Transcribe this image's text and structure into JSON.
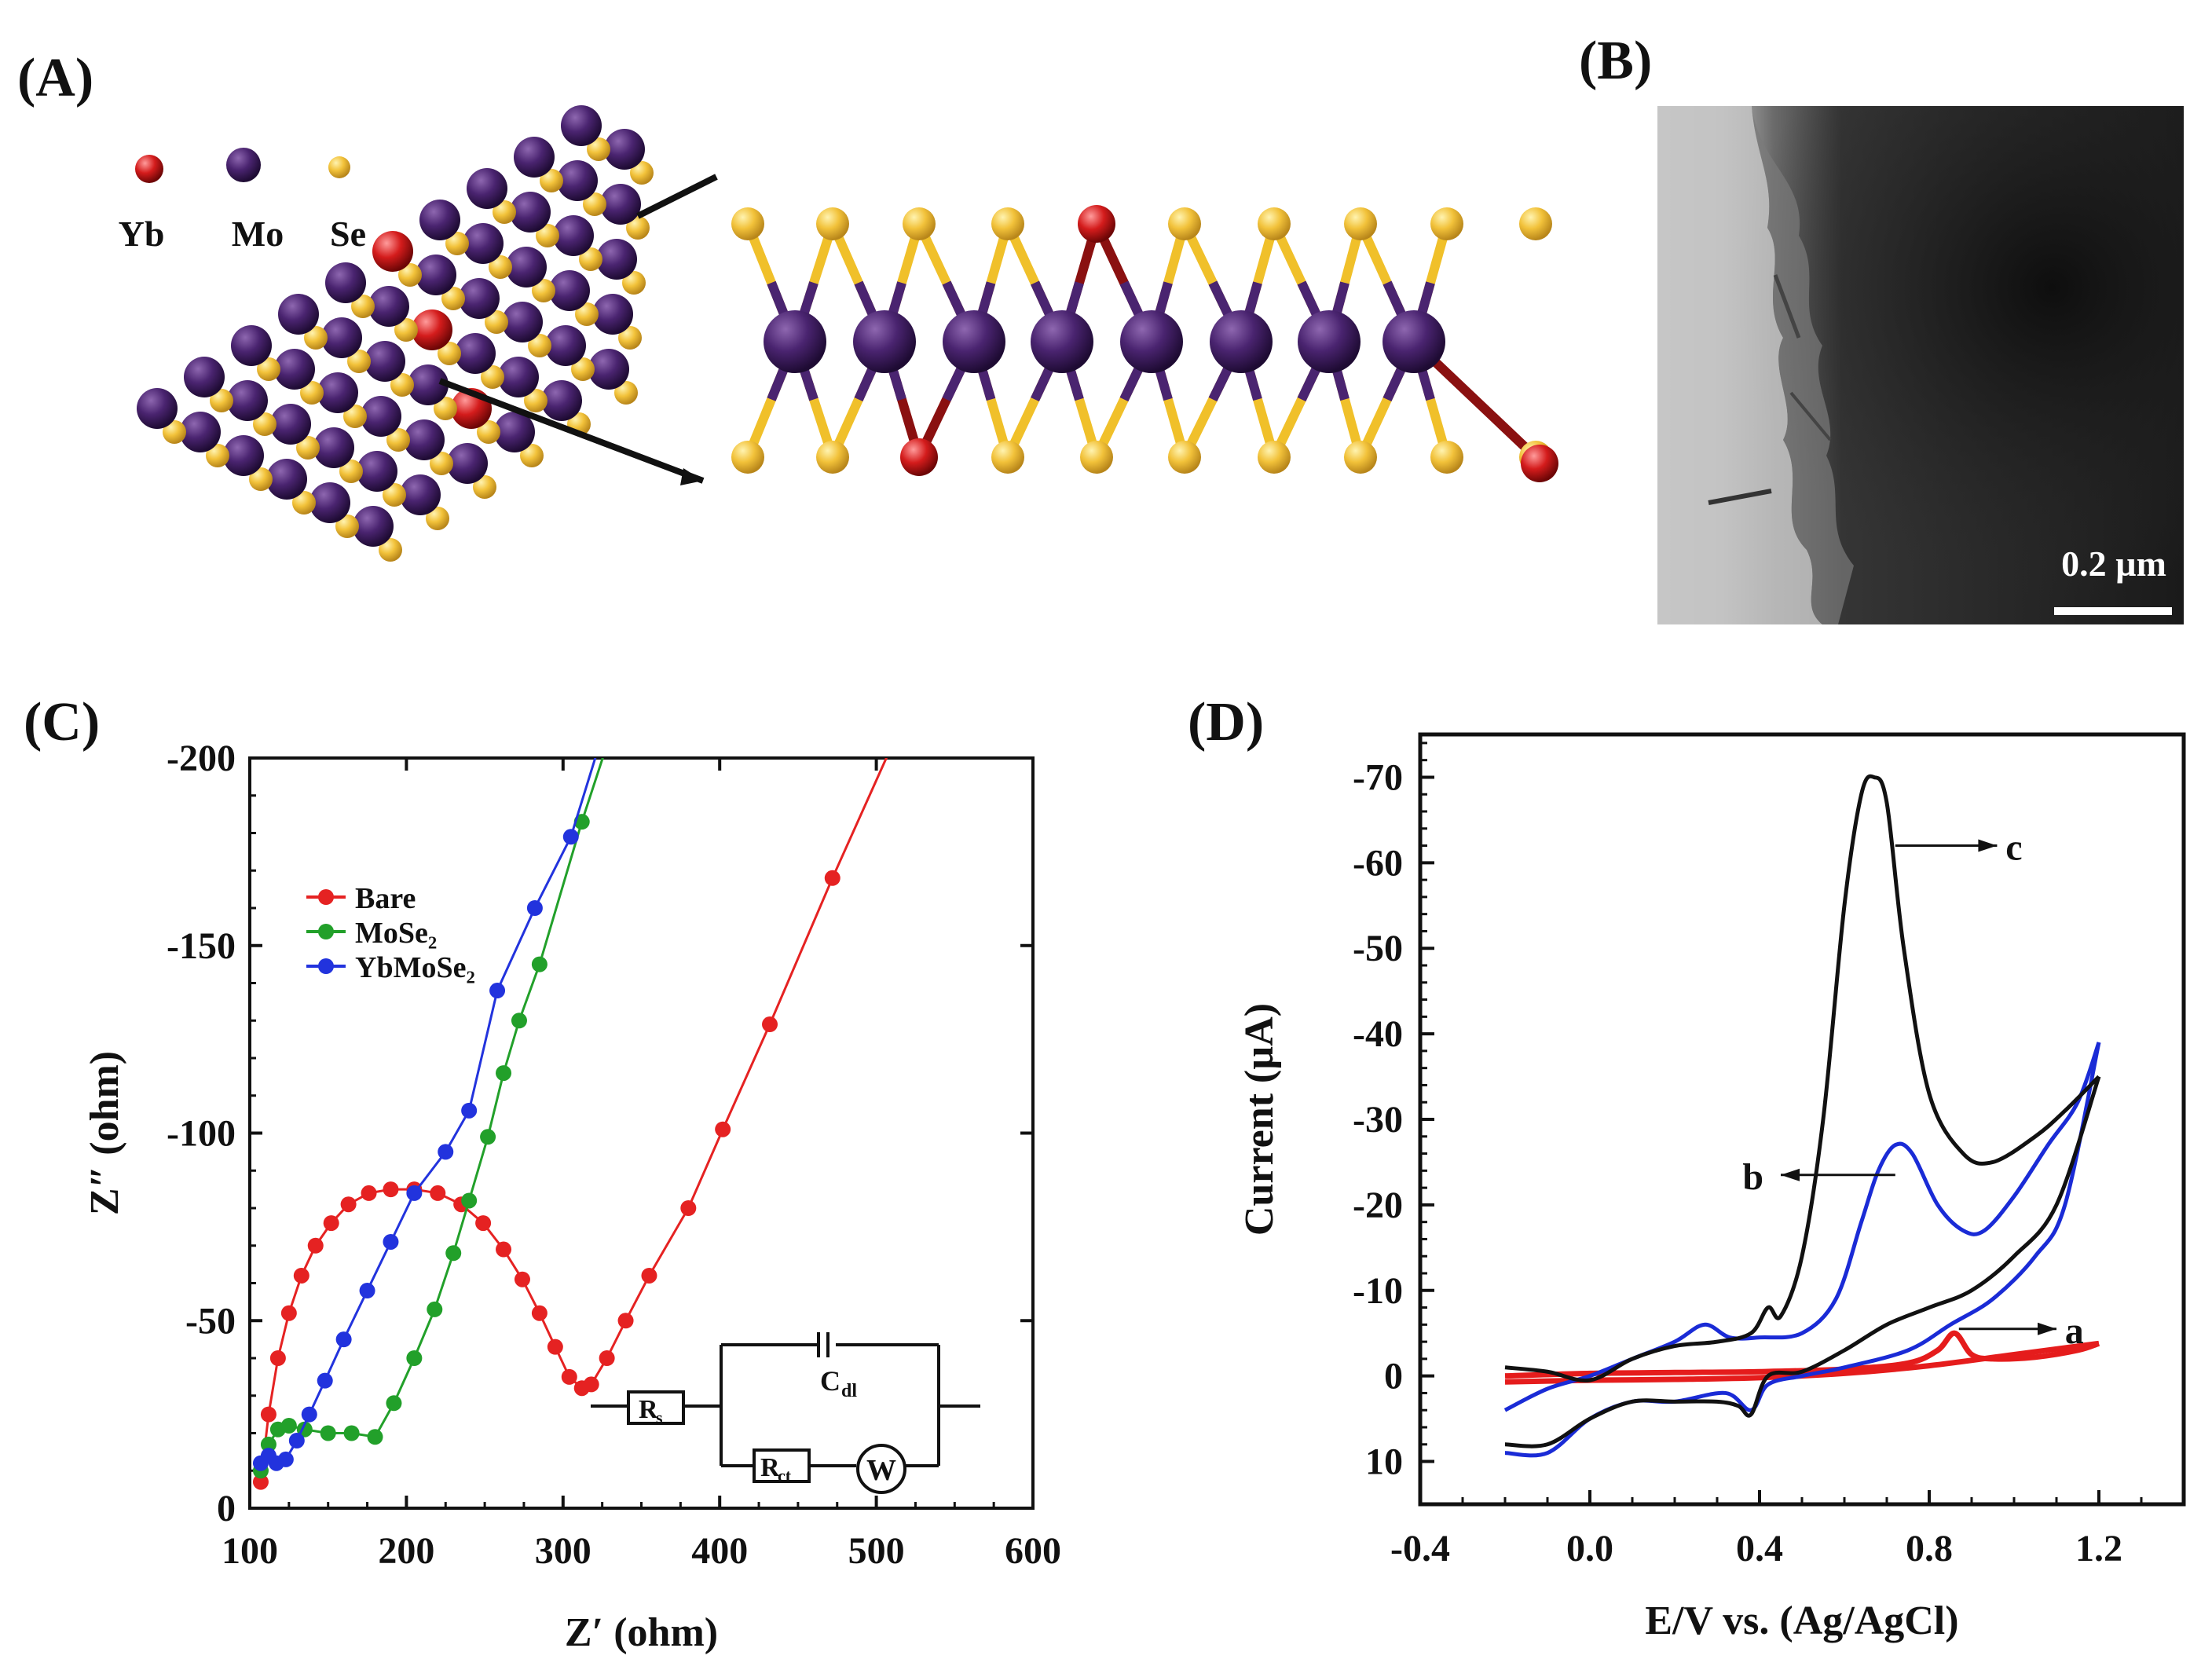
{
  "panels": {
    "a": {
      "label": "(A)"
    },
    "b": {
      "label": "(B)"
    },
    "c": {
      "label": "(C)"
    },
    "d": {
      "label": "(D)"
    }
  },
  "structure": {
    "legend": [
      {
        "label": "Yb",
        "color": "#cc1a1a"
      },
      {
        "label": "Mo",
        "color": "#3d1a5e"
      },
      {
        "label": "Se",
        "color": "#f2c23a"
      }
    ]
  },
  "micrograph": {
    "scale_label": "0.2 µm"
  },
  "chart_data": [
    {
      "panel": "C",
      "type": "scatter",
      "xlabel": "Z′ (ohm)",
      "ylabel": "Z″ (ohm)",
      "xlim": [
        100,
        600
      ],
      "ylim": [
        0,
        -200
      ],
      "xticks": [
        "100",
        "200",
        "300",
        "400",
        "500",
        "600"
      ],
      "yticks": [
        "0",
        "-50",
        "-100",
        "-150",
        "-200"
      ],
      "legend_position": "upper-left",
      "series": [
        {
          "name": "Bare",
          "color": "#e52222",
          "x": [
            107,
            112,
            118,
            125,
            133,
            142,
            152,
            163,
            176,
            190,
            205,
            220,
            235,
            249,
            262,
            274,
            285,
            295,
            304,
            312,
            318,
            328,
            340,
            355,
            380,
            402,
            432,
            472
          ],
          "y": [
            -7,
            -25,
            -40,
            -52,
            -62,
            -70,
            -76,
            -81,
            -84,
            -85,
            -85,
            -84,
            -81,
            -76,
            -69,
            -61,
            -52,
            -43,
            -35,
            -32,
            -33,
            -40,
            -50,
            -62,
            -80,
            -101,
            -129,
            -168
          ]
        },
        {
          "name": "MoSe₂",
          "color": "#22a02a",
          "x": [
            107,
            112,
            118,
            125,
            135,
            150,
            165,
            180,
            192,
            205,
            218,
            230,
            240,
            252,
            262,
            272,
            285,
            312
          ],
          "y": [
            -10,
            -17,
            -21,
            -22,
            -21,
            -20,
            -20,
            -19,
            -28,
            -40,
            -53,
            -68,
            -82,
            -99,
            -116,
            -130,
            -145,
            -183
          ]
        },
        {
          "name": "YbMoSe₂",
          "color": "#2233dd",
          "x": [
            107,
            112,
            117,
            123,
            130,
            138,
            148,
            160,
            175,
            190,
            205,
            225,
            240,
            258,
            282,
            305
          ],
          "y": [
            -12,
            -14,
            -12,
            -13,
            -18,
            -25,
            -34,
            -45,
            -58,
            -71,
            -84,
            -95,
            -106,
            -138,
            -160,
            -179
          ]
        }
      ],
      "circuit": {
        "rs": "R",
        "rs_sub": "s",
        "cdl": "C",
        "cdl_sub": "dl",
        "rct": "R",
        "rct_sub": "ct",
        "w": "W"
      }
    },
    {
      "panel": "D",
      "type": "line",
      "xlabel": "E/V vs. (Ag/AgCl)",
      "ylabel": "Current (µA)",
      "xlim": [
        -0.4,
        1.4
      ],
      "ylim": [
        15,
        -75
      ],
      "xticks": [
        "-0.4",
        "0.0",
        "0.4",
        "0.8",
        "1.2"
      ],
      "yticks": [
        "10",
        "0",
        "-10",
        "-20",
        "-30",
        "-40",
        "-50",
        "-60",
        "-70"
      ],
      "series": [
        {
          "label": "c",
          "color": "#111111",
          "forward": {
            "x": [
              -0.2,
              -0.1,
              0.0,
              0.1,
              0.2,
              0.3,
              0.38,
              0.42,
              0.45,
              0.5,
              0.55,
              0.6,
              0.64,
              0.67,
              0.7,
              0.74,
              0.8,
              0.88,
              0.95,
              1.05,
              1.12,
              1.2
            ],
            "y": [
              -1,
              -0.5,
              0.5,
              -2,
              -3.5,
              -4,
              -5,
              -8,
              -7,
              -14,
              -30,
              -55,
              -68,
              -70,
              -67,
              -50,
              -33,
              -26,
              -25,
              -28,
              -31,
              -35
            ]
          },
          "reverse": {
            "x": [
              1.2,
              1.1,
              1.0,
              0.9,
              0.8,
              0.7,
              0.6,
              0.5,
              0.42,
              0.38,
              0.35,
              0.3,
              0.2,
              0.1,
              0.0,
              -0.1,
              -0.2
            ],
            "y": [
              -35,
              -20,
              -14,
              -10,
              -8,
              -6,
              -3,
              -0.5,
              0,
              4.5,
              3.5,
              3,
              3,
              3,
              5,
              8,
              8
            ]
          }
        },
        {
          "label": "b",
          "color": "#1a2bd6",
          "forward": {
            "x": [
              -0.2,
              -0.1,
              0.0,
              0.1,
              0.2,
              0.27,
              0.33,
              0.4,
              0.5,
              0.58,
              0.64,
              0.68,
              0.72,
              0.76,
              0.82,
              0.88,
              0.93,
              1.0,
              1.08,
              1.15,
              1.2
            ],
            "y": [
              4,
              1.5,
              0,
              -2,
              -4,
              -6,
              -4.5,
              -4.5,
              -5,
              -9,
              -18,
              -24,
              -27,
              -26,
              -20,
              -17,
              -17,
              -21,
              -27,
              -32,
              -39
            ]
          },
          "reverse": {
            "x": [
              1.2,
              1.12,
              1.05,
              0.95,
              0.85,
              0.75,
              0.6,
              0.5,
              0.42,
              0.38,
              0.32,
              0.2,
              0.1,
              0.0,
              -0.1,
              -0.2
            ],
            "y": [
              -39,
              -20,
              -14,
              -9,
              -6,
              -3,
              -1,
              0,
              1,
              4,
              2,
              3,
              3,
              5,
              9,
              9
            ]
          }
        },
        {
          "label": "a",
          "color": "#e51c1c",
          "forward": {
            "x": [
              -0.2,
              0.0,
              0.2,
              0.4,
              0.6,
              0.75,
              0.82,
              0.86,
              0.9,
              0.95,
              1.05,
              1.15,
              1.2
            ],
            "y": [
              0,
              -0.3,
              -0.4,
              -0.5,
              -0.8,
              -1.5,
              -3,
              -5,
              -2.5,
              -2,
              -2.2,
              -3,
              -3.8
            ]
          },
          "reverse": {
            "x": [
              1.2,
              1.0,
              0.8,
              0.6,
              0.4,
              0.2,
              0.0,
              -0.2
            ],
            "y": [
              -3.8,
              -2.5,
              -1.2,
              -0.3,
              0.2,
              0.4,
              0.5,
              0.7
            ]
          }
        }
      ]
    }
  ]
}
